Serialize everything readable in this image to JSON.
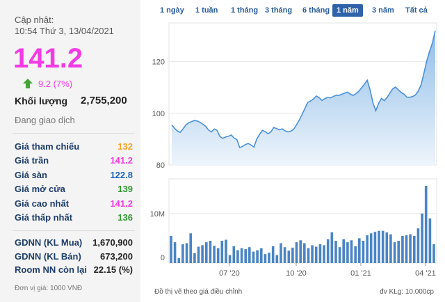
{
  "left_panel": {
    "updated_label": "Cập nhật:",
    "updated_time": "10:54 Thứ 3, 13/04/2021",
    "price": "141.2",
    "change": "9.2 (7%)",
    "volume_label": "Khối lượng",
    "volume_value": "2,755,200",
    "status": "Đang giao dịch",
    "price_rows": [
      {
        "label": "Giá tham chiếu",
        "value": "132",
        "color": "#f2a126"
      },
      {
        "label": "Giá trần",
        "value": "141.2",
        "color": "#f23be4"
      },
      {
        "label": "Giá sàn",
        "value": "122.8",
        "color": "#1e63b8"
      },
      {
        "label": "Giá mở cửa",
        "value": "139",
        "color": "#2e9a2e"
      },
      {
        "label": "Giá cao nhất",
        "value": "141.2",
        "color": "#f23be4"
      },
      {
        "label": "Giá thấp nhất",
        "value": "136",
        "color": "#2e9a2e"
      }
    ],
    "foreign_rows": [
      {
        "label": "GDNN (KL Mua)",
        "value": "1,670,900"
      },
      {
        "label": "GDNN (KL Bán)",
        "value": "673,200"
      },
      {
        "label": "Room NN còn lại",
        "value": "22.15 (%)"
      }
    ],
    "unit_note": "Đơn vị giá: 1000 VNĐ"
  },
  "tabs": [
    {
      "label": "1 ngày",
      "active": false
    },
    {
      "label": "1 tuần",
      "active": false
    },
    {
      "label": "1 tháng",
      "active": false
    },
    {
      "label": "3 tháng",
      "active": false
    },
    {
      "label": "6 tháng",
      "active": false
    },
    {
      "label": "1 năm",
      "active": true
    },
    {
      "label": "3 năm",
      "active": false
    },
    {
      "label": "Tất cả",
      "active": false
    }
  ],
  "footer": {
    "left": "Đồ thị vẽ theo giá điều chỉnh",
    "right": "đv KLg: 10,000cp"
  },
  "colors": {
    "line": "#4a90d9",
    "fill_top": "#8fbde8",
    "fill_bottom": "#eef5fc",
    "bar": "#4a84c4",
    "price": "#f23be4",
    "up_arrow": "#43a534"
  },
  "chart_data": [
    {
      "type": "area",
      "ylim": [
        80,
        135
      ],
      "yticks": [
        80,
        100,
        120
      ],
      "grid": true,
      "xticks": [
        "07 '20",
        "10 '20",
        "01 '21",
        "04 '21"
      ],
      "values": [
        95.5,
        94.2,
        93.1,
        92.6,
        94.0,
        95.5,
        96.3,
        96.8,
        97.2,
        97.0,
        96.5,
        95.8,
        94.9,
        93.5,
        92.8,
        93.9,
        93.4,
        91.0,
        90.3,
        90.8,
        91.1,
        91.6,
        90.4,
        89.8,
        86.7,
        87.2,
        87.9,
        88.3,
        87.7,
        86.9,
        90.0,
        91.8,
        93.4,
        92.9,
        92.1,
        92.8,
        94.5,
        94.1,
        93.6,
        94.0,
        93.2,
        92.8,
        93.1,
        93.7,
        95.5,
        97.4,
        99.6,
        101.9,
        104.2,
        104.8,
        105.5,
        106.7,
        106.1,
        105.0,
        105.6,
        106.2,
        106.0,
        106.5,
        107.0,
        106.9,
        107.4,
        107.8,
        108.2,
        107.5,
        106.9,
        107.6,
        108.5,
        109.9,
        111.3,
        112.8,
        109.0,
        104.1,
        101.0,
        103.8,
        105.8,
        104.9,
        106.1,
        107.9,
        109.5,
        110.2,
        109.1,
        108.1,
        107.4,
        106.3,
        106.2,
        106.5,
        107.1,
        108.6,
        111.0,
        115.6,
        120.3,
        124.0,
        127.2,
        132.0
      ]
    },
    {
      "type": "bar",
      "ylabel_tick": "10M",
      "yticks": [
        0,
        10
      ],
      "unit": "10,000cp",
      "ylim": [
        0,
        17
      ],
      "values": [
        5.5,
        4.2,
        1.0,
        3.8,
        4.0,
        6.0,
        2.0,
        3.3,
        3.6,
        4.2,
        4.5,
        3.5,
        3.0,
        4.5,
        4.7,
        1.6,
        3.4,
        2.6,
        3.0,
        2.8,
        3.2,
        2.3,
        2.6,
        3.0,
        1.8,
        2.1,
        3.4,
        1.6,
        4.0,
        3.2,
        2.5,
        3.1,
        4.2,
        4.6,
        4.0,
        3.0,
        3.6,
        3.3,
        3.8,
        3.6,
        4.8,
        6.2,
        4.5,
        3.2,
        4.8,
        4.2,
        4.6,
        3.4,
        5.0,
        4.5,
        5.6,
        6.0,
        6.3,
        6.5,
        6.5,
        6.2,
        5.8,
        4.2,
        4.5,
        5.5,
        5.6,
        5.8,
        5.5,
        7.0,
        10.0,
        15.6,
        9.0,
        3.8
      ]
    }
  ]
}
